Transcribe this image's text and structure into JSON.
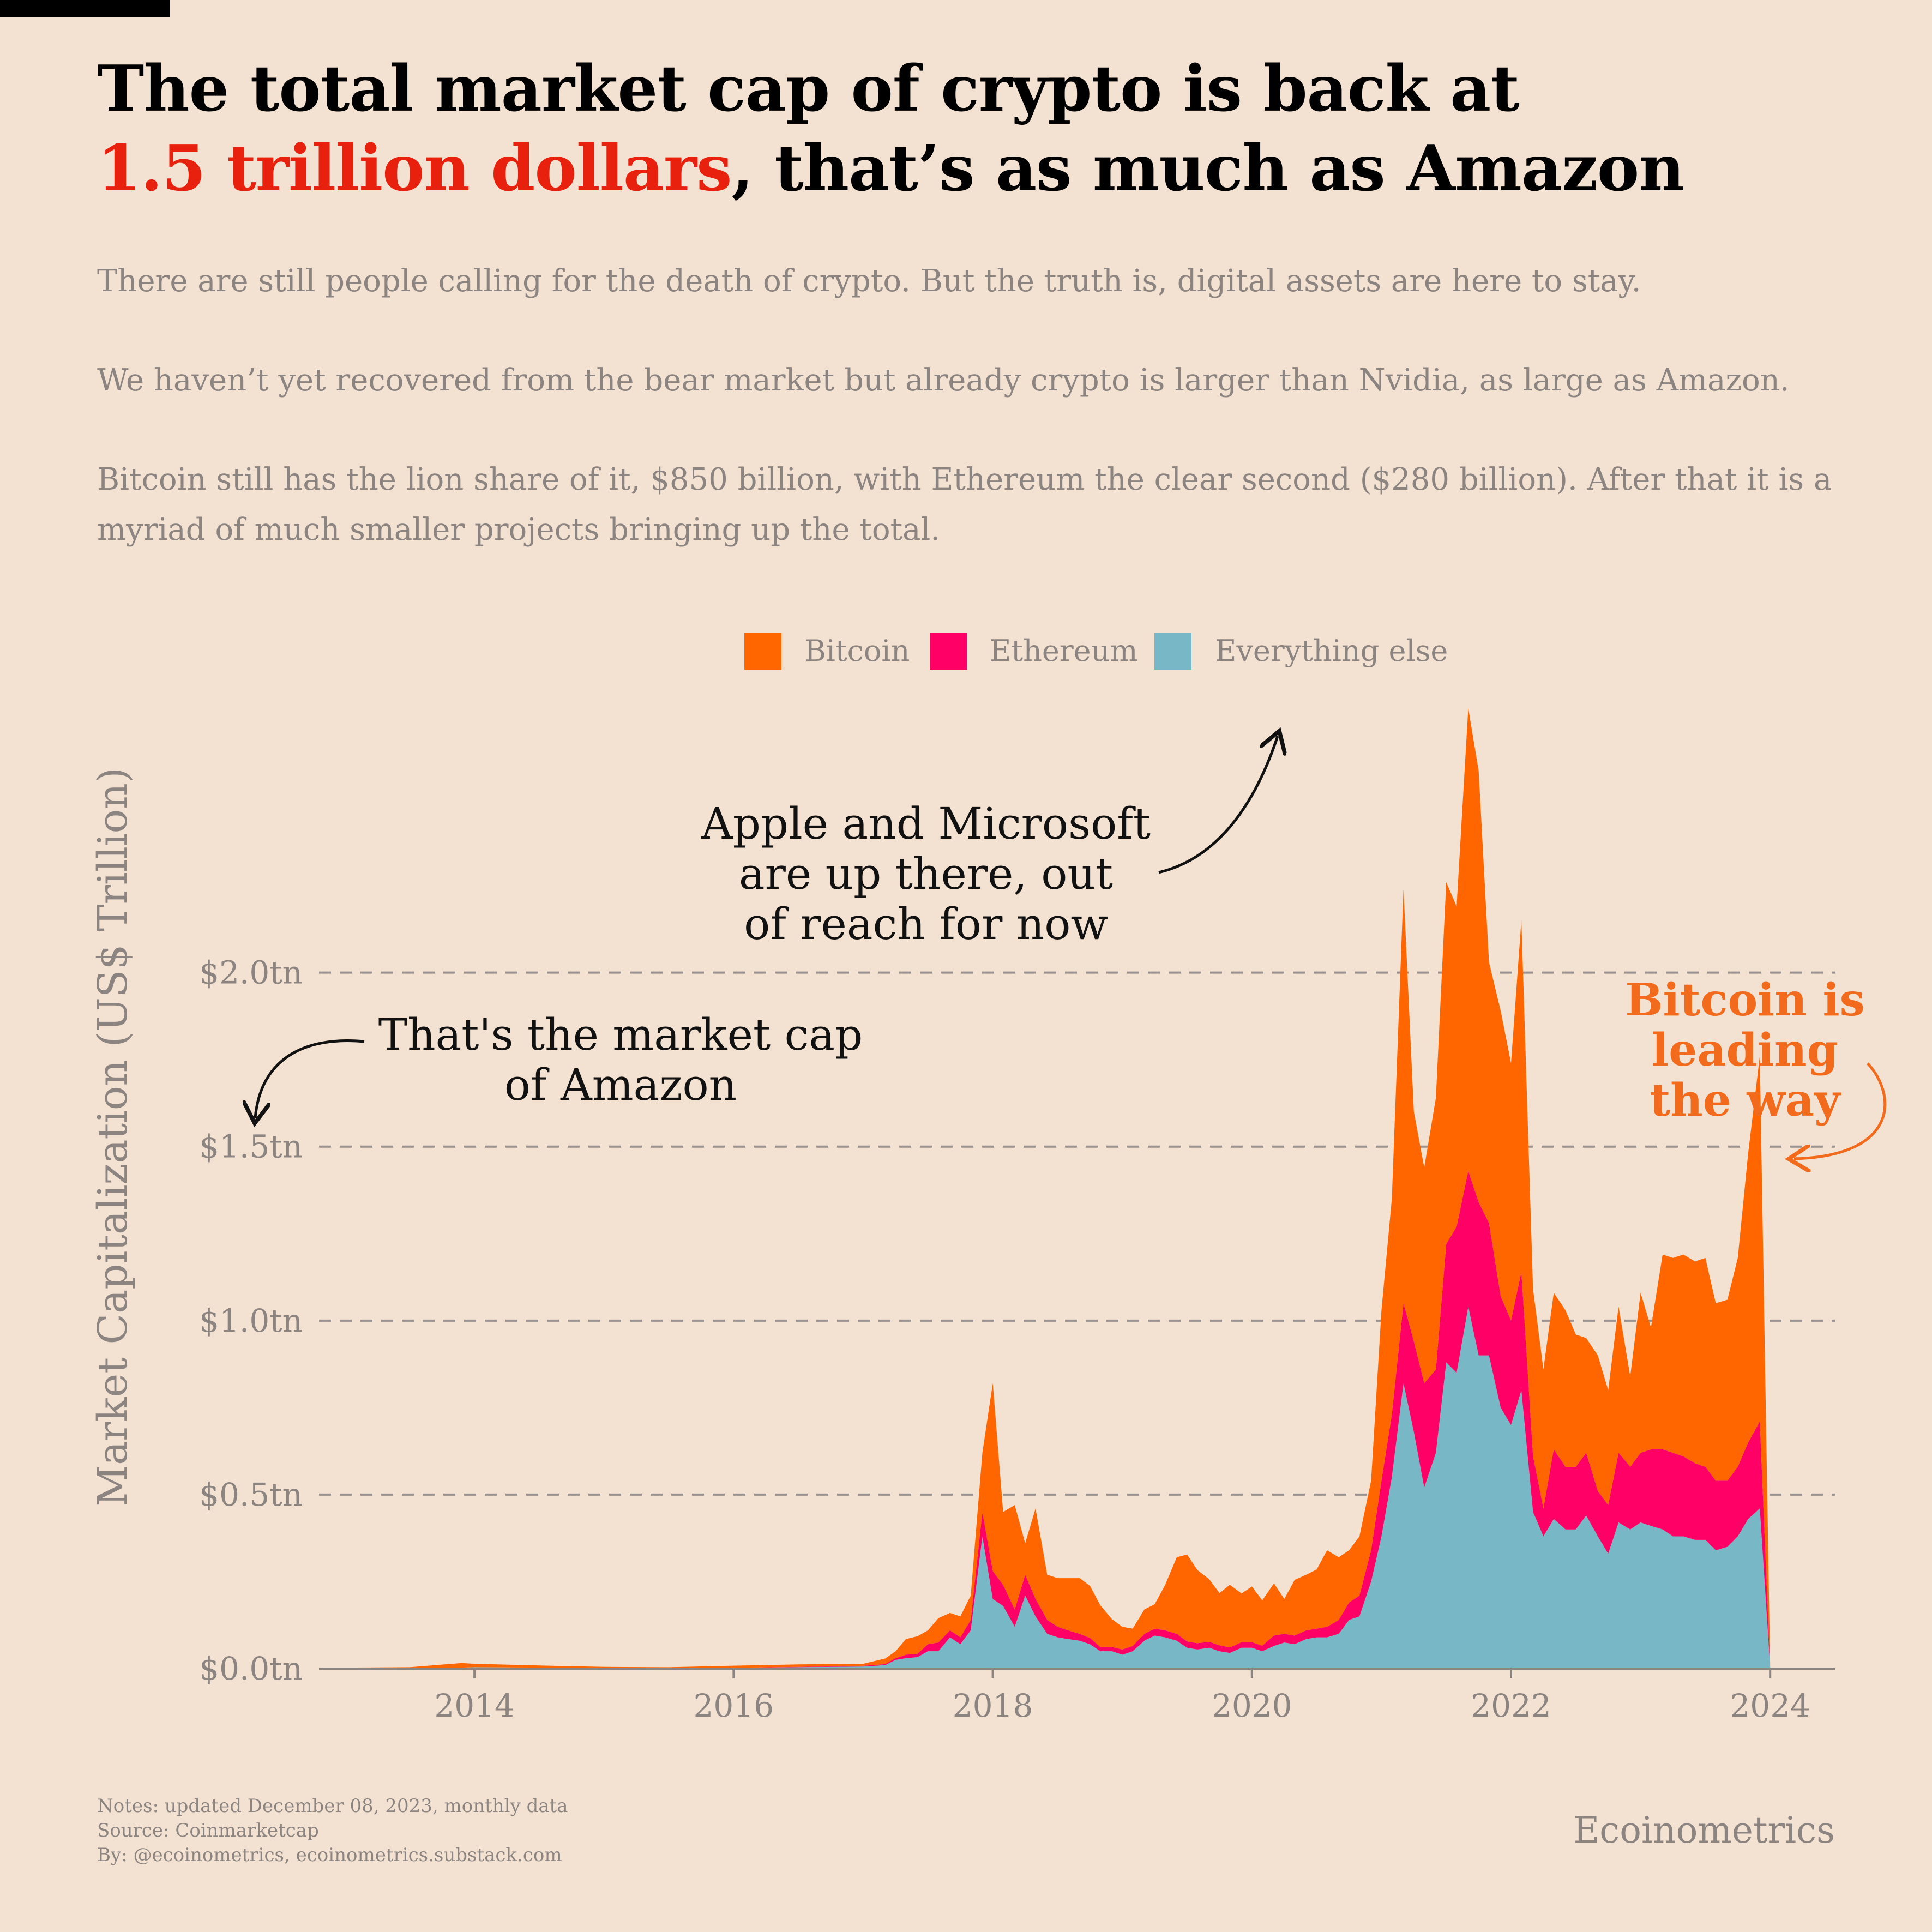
{
  "header": {
    "title_line1": "The total market cap of crypto is back at",
    "title_highlight": "1.5 trillion dollars",
    "title_line2_rest": ", that’s as much as Amazon",
    "paragraphs": [
      "There are still people calling for the death of crypto. But the truth is, digital assets are here to stay.",
      "We haven’t yet recovered from the bear market but already crypto is larger than Nvidia, as large as Amazon.",
      "Bitcoin still has the lion share of it, $850 billion, with Ethereum the clear second ($280 billion). After that it is a myriad of much smaller projects bringing up the total."
    ]
  },
  "footer": {
    "notes": "Notes: updated December 08, 2023, monthly data",
    "source": "Source: Coinmarketcap",
    "by": "By: @ecoinometrics, ecoinometrics.substack.com",
    "brand": "Ecoinometrics"
  },
  "annotations": {
    "apple_line1": "Apple and Microsoft",
    "apple_line2": "are up there, out",
    "apple_line3": "of reach for now",
    "amazon_line1": "That's the market cap",
    "amazon_line2": "of Amazon",
    "btc_line1": "Bitcoin is",
    "btc_line2": "leading",
    "btc_line3": "the way"
  },
  "chart_data": {
    "type": "area",
    "stacked": true,
    "ylabel": "Market Capitalization (US$ Trillion)",
    "xlabel": "",
    "ylim": [
      0,
      2.75
    ],
    "xlim": [
      2012.8,
      2024.5
    ],
    "yticks": [
      0,
      0.5,
      1.0,
      1.5,
      2.0
    ],
    "ytick_labels": [
      "$0.0tn",
      "$0.5tn",
      "$1.0tn",
      "$1.5tn",
      "$2.0tn"
    ],
    "xticks": [
      2014,
      2016,
      2018,
      2020,
      2022,
      2024
    ],
    "xtick_labels": [
      "2014",
      "2016",
      "2018",
      "2020",
      "2022",
      "2024"
    ],
    "grid": "horizontal dashed",
    "legend_position": "top-center",
    "colors": {
      "bitcoin": "#ff6600",
      "ethereum": "#ff0066",
      "other": "#78b8c6",
      "annotation_btc": "#f26b1d"
    },
    "x": [
      2013.0,
      2013.5,
      2013.9,
      2014.0,
      2014.5,
      2015.0,
      2015.5,
      2016.0,
      2016.5,
      2017.0,
      2017.17,
      2017.25,
      2017.33,
      2017.42,
      2017.5,
      2017.58,
      2017.67,
      2017.75,
      2017.83,
      2017.92,
      2018.0,
      2018.08,
      2018.17,
      2018.25,
      2018.33,
      2018.42,
      2018.5,
      2018.58,
      2018.67,
      2018.75,
      2018.83,
      2018.92,
      2019.0,
      2019.08,
      2019.17,
      2019.25,
      2019.33,
      2019.42,
      2019.5,
      2019.58,
      2019.67,
      2019.75,
      2019.83,
      2019.92,
      2020.0,
      2020.08,
      2020.17,
      2020.25,
      2020.33,
      2020.42,
      2020.5,
      2020.58,
      2020.67,
      2020.75,
      2020.83,
      2020.92,
      2021.0,
      2021.08,
      2021.17,
      2021.25,
      2021.33,
      2021.42,
      2021.5,
      2021.58,
      2021.67,
      2021.75,
      2021.83,
      2021.92,
      2022.0,
      2022.08,
      2022.17,
      2022.25,
      2022.33,
      2022.42,
      2022.5,
      2022.58,
      2022.67,
      2022.75,
      2022.83,
      2022.92,
      2023.0,
      2023.08,
      2023.17,
      2023.25,
      2023.33,
      2023.42,
      2023.5,
      2023.58,
      2023.67,
      2023.75,
      2023.83,
      2023.92,
      2024.0
    ],
    "series": [
      {
        "name": "Everything else",
        "values": [
          0.001,
          0.001,
          0.003,
          0.004,
          0.003,
          0.002,
          0.001,
          0.002,
          0.004,
          0.006,
          0.01,
          0.025,
          0.03,
          0.033,
          0.05,
          0.05,
          0.09,
          0.07,
          0.11,
          0.38,
          0.2,
          0.18,
          0.12,
          0.21,
          0.15,
          0.1,
          0.09,
          0.085,
          0.08,
          0.07,
          0.05,
          0.05,
          0.04,
          0.05,
          0.08,
          0.095,
          0.09,
          0.08,
          0.06,
          0.055,
          0.06,
          0.05,
          0.045,
          0.06,
          0.06,
          0.05,
          0.065,
          0.075,
          0.07,
          0.085,
          0.09,
          0.09,
          0.1,
          0.14,
          0.15,
          0.25,
          0.38,
          0.55,
          0.82,
          0.68,
          0.52,
          0.62,
          0.88,
          0.85,
          1.04,
          0.9,
          0.9,
          0.75,
          0.7,
          0.8,
          0.45,
          0.38,
          0.43,
          0.4,
          0.4,
          0.44,
          0.38,
          0.33,
          0.42,
          0.4,
          0.42,
          0.41,
          0.4,
          0.38,
          0.38,
          0.37,
          0.37,
          0.34,
          0.35,
          0.38,
          0.43,
          0.46,
          0.005
        ]
      },
      {
        "name": "Ethereum",
        "values": [
          0,
          0,
          0,
          0,
          0,
          0,
          0,
          0.0005,
          0.001,
          0.002,
          0.003,
          0.005,
          0.01,
          0.01,
          0.02,
          0.025,
          0.02,
          0.02,
          0.03,
          0.07,
          0.08,
          0.06,
          0.05,
          0.06,
          0.05,
          0.04,
          0.03,
          0.025,
          0.02,
          0.018,
          0.012,
          0.012,
          0.015,
          0.015,
          0.02,
          0.02,
          0.02,
          0.02,
          0.018,
          0.018,
          0.017,
          0.017,
          0.016,
          0.016,
          0.016,
          0.016,
          0.03,
          0.025,
          0.025,
          0.025,
          0.025,
          0.03,
          0.04,
          0.05,
          0.06,
          0.09,
          0.16,
          0.18,
          0.23,
          0.26,
          0.3,
          0.24,
          0.34,
          0.42,
          0.39,
          0.44,
          0.38,
          0.32,
          0.3,
          0.34,
          0.16,
          0.08,
          0.2,
          0.18,
          0.18,
          0.18,
          0.13,
          0.14,
          0.2,
          0.18,
          0.2,
          0.22,
          0.23,
          0.24,
          0.23,
          0.22,
          0.21,
          0.2,
          0.19,
          0.2,
          0.22,
          0.25,
          0
        ]
      },
      {
        "name": "Bitcoin",
        "values": [
          0.002,
          0.003,
          0.013,
          0.01,
          0.006,
          0.003,
          0.003,
          0.006,
          0.007,
          0.006,
          0.016,
          0.02,
          0.045,
          0.05,
          0.04,
          0.07,
          0.05,
          0.06,
          0.07,
          0.17,
          0.54,
          0.21,
          0.3,
          0.09,
          0.26,
          0.13,
          0.14,
          0.15,
          0.16,
          0.15,
          0.12,
          0.08,
          0.065,
          0.05,
          0.07,
          0.07,
          0.13,
          0.22,
          0.25,
          0.21,
          0.18,
          0.15,
          0.18,
          0.14,
          0.16,
          0.13,
          0.15,
          0.1,
          0.16,
          0.16,
          0.17,
          0.22,
          0.18,
          0.15,
          0.17,
          0.2,
          0.49,
          0.62,
          1.19,
          0.66,
          0.62,
          0.78,
          1.04,
          0.92,
          1.33,
          1.24,
          0.75,
          0.82,
          0.74,
          1.01,
          0.48,
          0.4,
          0.45,
          0.45,
          0.38,
          0.33,
          0.39,
          0.33,
          0.42,
          0.26,
          0.46,
          0.35,
          0.56,
          0.56,
          0.58,
          0.58,
          0.6,
          0.51,
          0.52,
          0.6,
          0.83,
          1.05,
          0
        ]
      }
    ]
  }
}
